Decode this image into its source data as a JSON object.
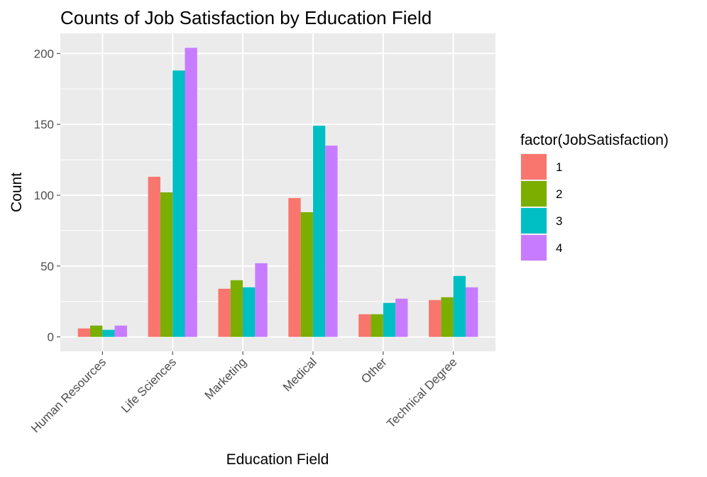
{
  "chart_data": {
    "type": "bar",
    "title": "Counts of Job Satisfaction by Education Field",
    "xlabel": "Education Field",
    "ylabel": "Count",
    "categories": [
      "Human Resources",
      "Life Sciences",
      "Marketing",
      "Medical",
      "Other",
      "Technical Degree"
    ],
    "series": [
      {
        "name": "1",
        "color": "#F8766D",
        "values": [
          6,
          113,
          34,
          98,
          16,
          26
        ]
      },
      {
        "name": "2",
        "color": "#7CAE00",
        "values": [
          8,
          102,
          40,
          88,
          16,
          28
        ]
      },
      {
        "name": "3",
        "color": "#00BFC4",
        "values": [
          5,
          188,
          35,
          149,
          24,
          43
        ]
      },
      {
        "name": "4",
        "color": "#C77CFF",
        "values": [
          8,
          204,
          52,
          135,
          27,
          35
        ]
      }
    ],
    "yticks": [
      0,
      50,
      100,
      150,
      200
    ],
    "ylim": [
      -10.2,
      214.2
    ],
    "grid": true,
    "legend": {
      "title": "factor(JobSatisfaction)",
      "position": "right"
    },
    "panel_background": "#EBEBEB",
    "gridline_color": "#FFFFFF"
  }
}
